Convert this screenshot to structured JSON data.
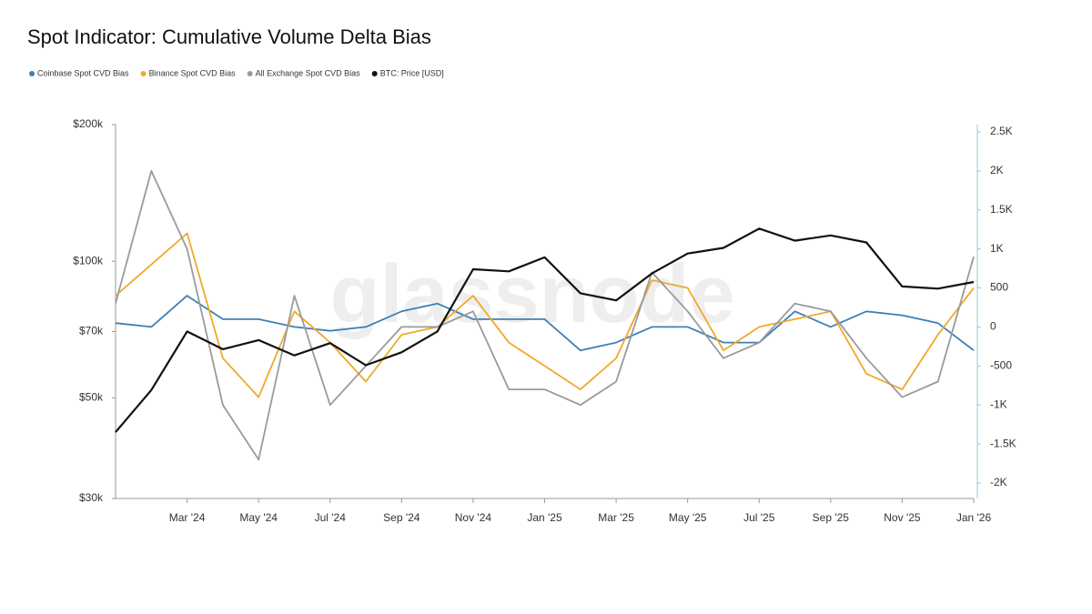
{
  "chart_data": {
    "type": "line",
    "title": "Spot Indicator: Cumulative Volume Delta Bias",
    "watermark": "glassnode",
    "x": [
      "2024-01",
      "2024-02",
      "2024-03",
      "2024-04",
      "2024-05",
      "2024-06",
      "2024-07",
      "2024-08",
      "2024-09",
      "2024-10",
      "2024-11",
      "2024-12",
      "2025-01",
      "2025-02",
      "2025-03",
      "2025-04",
      "2025-05",
      "2025-06",
      "2025-07",
      "2025-08",
      "2025-09",
      "2025-10",
      "2025-11",
      "2025-12",
      "2026-01"
    ],
    "xlim": [
      "2024-01",
      "2026-01"
    ],
    "xticks": [
      {
        "value": "2024-03",
        "label": "Mar '24"
      },
      {
        "value": "2024-05",
        "label": "May '24"
      },
      {
        "value": "2024-07",
        "label": "Jul '24"
      },
      {
        "value": "2024-09",
        "label": "Sep '24"
      },
      {
        "value": "2024-11",
        "label": "Nov '24"
      },
      {
        "value": "2025-01",
        "label": "Jan '25"
      },
      {
        "value": "2025-03",
        "label": "Mar '25"
      },
      {
        "value": "2025-05",
        "label": "May '25"
      },
      {
        "value": "2025-07",
        "label": "Jul '25"
      },
      {
        "value": "2025-09",
        "label": "Sep '25"
      },
      {
        "value": "2025-11",
        "label": "Nov '25"
      },
      {
        "value": "2026-01",
        "label": "Jan '26"
      }
    ],
    "ylim": [
      30000,
      200000
    ],
    "log_scale": true,
    "yticks": [
      {
        "value": 30000,
        "label": "$30k"
      },
      {
        "value": 50000,
        "label": "$50k"
      },
      {
        "value": 70000,
        "label": "$70k"
      },
      {
        "value": 100000,
        "label": "$100k"
      },
      {
        "value": 200000,
        "label": "$200k"
      }
    ],
    "y2lim": [
      -2000,
      2500
    ],
    "y2ticks": [
      {
        "value": -2000,
        "label": "-2K"
      },
      {
        "value": -1500,
        "label": "-1.5K"
      },
      {
        "value": -1000,
        "label": "-1K"
      },
      -500,
      0,
      500,
      {
        "value": 1000,
        "label": "1K"
      },
      {
        "value": 1500,
        "label": "1.5K"
      },
      {
        "value": 2000,
        "label": "2K"
      },
      {
        "value": 2500,
        "label": "2.5K"
      }
    ],
    "legend": "top-left",
    "series": [
      {
        "name": "Coinbase Spot CVD Bias",
        "color": "#3f7fb5",
        "axis": "y2",
        "values": [
          50,
          0,
          400,
          100,
          100,
          0,
          -50,
          0,
          200,
          300,
          100,
          100,
          100,
          -300,
          -200,
          0,
          0,
          -200,
          -200,
          200,
          0,
          200,
          150,
          50,
          -300
        ]
      },
      {
        "name": "Binance Spot CVD Bias",
        "color": "#f0a92a",
        "axis": "y2",
        "values": [
          400,
          800,
          1200,
          -400,
          -900,
          200,
          -200,
          -700,
          -100,
          0,
          400,
          -200,
          -500,
          -800,
          -400,
          600,
          500,
          -300,
          0,
          100,
          200,
          -600,
          -800,
          -100,
          500
        ]
      },
      {
        "name": "All Exchange Spot CVD Bias",
        "color": "#9a9a9a",
        "axis": "y2",
        "values": [
          300,
          2000,
          1000,
          -1000,
          -1700,
          400,
          -1000,
          -500,
          0,
          0,
          200,
          -800,
          -800,
          -1000,
          -700,
          700,
          200,
          -400,
          -200,
          300,
          200,
          -400,
          -900,
          -700,
          900
        ]
      },
      {
        "name": "BTC: Price [USD]",
        "color": "#111111",
        "values": [
          42000,
          52000,
          70000,
          64000,
          67000,
          62000,
          66000,
          59000,
          63000,
          70000,
          96000,
          95000,
          102000,
          85000,
          82000,
          94000,
          104000,
          107000,
          118000,
          111000,
          114000,
          110000,
          88000,
          87000,
          90000
        ]
      }
    ]
  }
}
